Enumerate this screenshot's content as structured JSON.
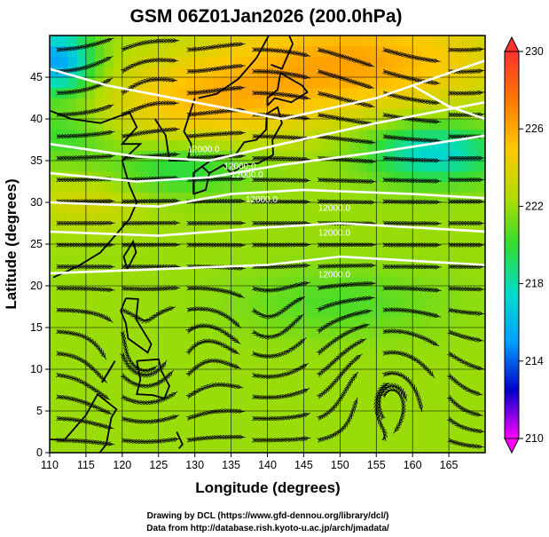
{
  "chart_data": {
    "type": "heatmap",
    "title": "GSM 06Z01Jan2026 (200.0hPa)",
    "xlabel": "Longitude (degrees)",
    "ylabel": "Latitude  (degrees)",
    "xlim": [
      110,
      170
    ],
    "ylim": [
      0,
      50
    ],
    "xticks": [
      110,
      115,
      120,
      125,
      130,
      135,
      140,
      145,
      150,
      155,
      160,
      165
    ],
    "yticks": [
      0,
      5,
      10,
      15,
      20,
      25,
      30,
      35,
      40,
      45
    ],
    "grid": true,
    "colorbar": {
      "min": 210,
      "max": 230,
      "ticks": [
        210,
        214,
        218,
        222,
        226,
        230
      ],
      "colors": [
        "#ff00ff",
        "#0000c8",
        "#00a0ff",
        "#00dcc8",
        "#32dc32",
        "#b4dc00",
        "#ffc800",
        "#ff7800",
        "#ff3232"
      ]
    },
    "contour_labels": [
      {
        "text": "12000.0",
        "lon": 129,
        "lat": 36
      },
      {
        "text": "12000.0",
        "lon": 134,
        "lat": 34
      },
      {
        "text": "12000.0",
        "lon": 135,
        "lat": 33
      },
      {
        "text": "12000.0",
        "lon": 137,
        "lat": 30
      },
      {
        "text": "12000.0",
        "lon": 147,
        "lat": 29
      },
      {
        "text": "12000.0",
        "lon": 147,
        "lat": 26
      },
      {
        "text": "12000.0",
        "lon": 147,
        "lat": 21
      }
    ]
  },
  "footer": {
    "line1": "Drawing by DCL (https://www.gfd-dennou.org/library/dcl/)",
    "line2": "Data from http://database.rish.kyoto-u.ac.jp/arch/jmadata/"
  }
}
